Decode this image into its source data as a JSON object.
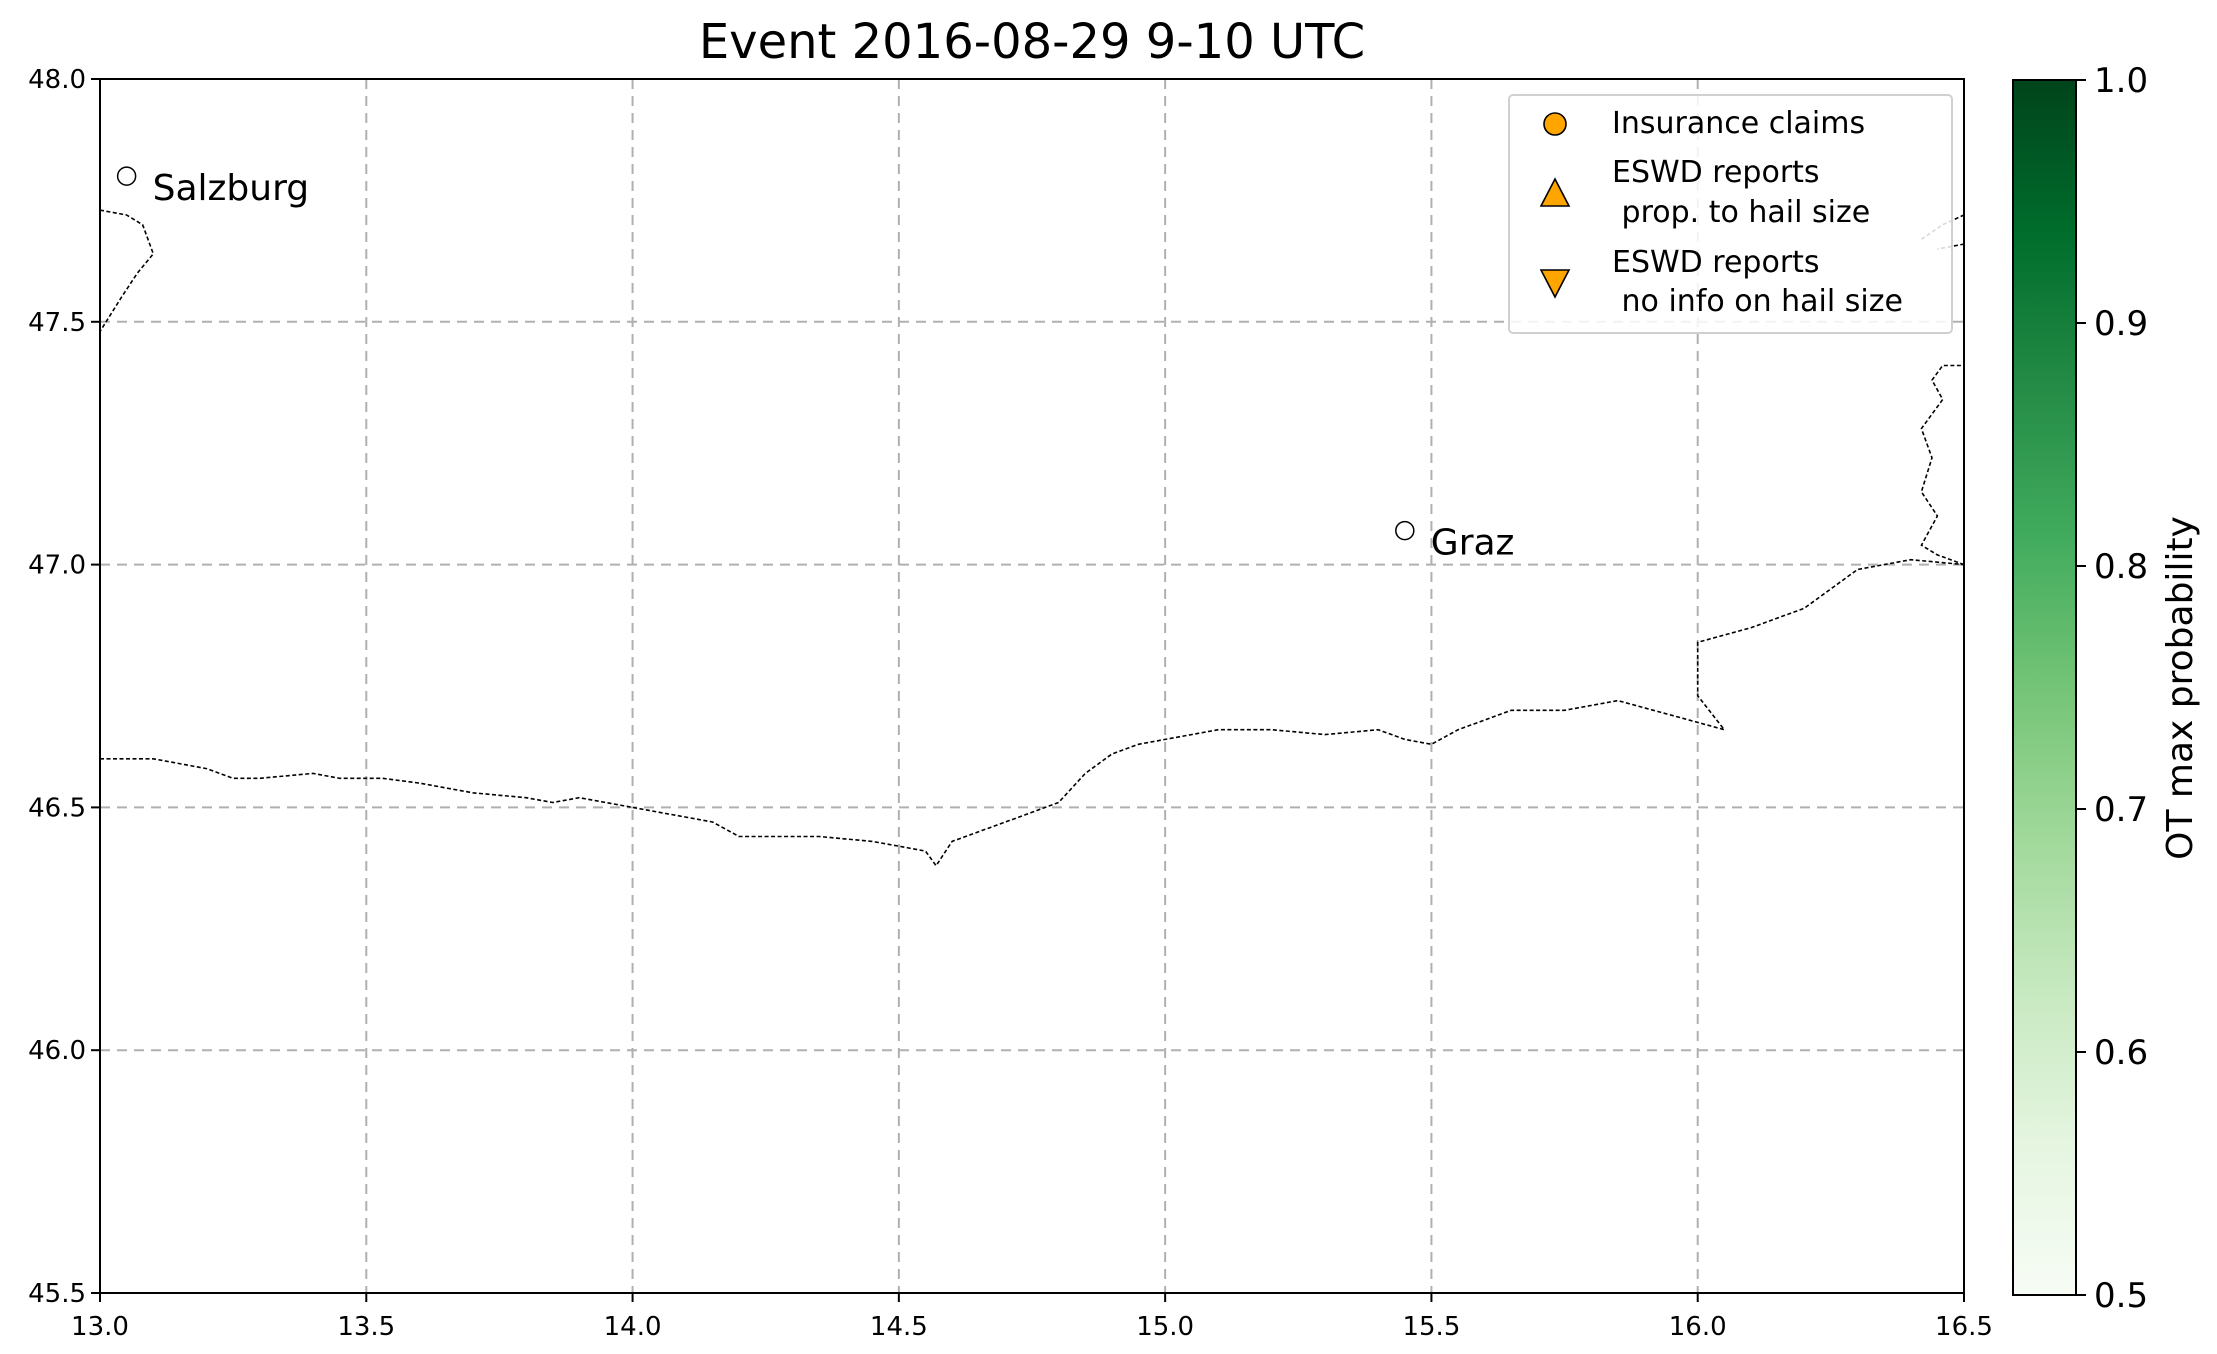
{
  "title": "Event 2016-08-29 9-10 UTC",
  "map": {
    "xlim": [
      13.0,
      16.5
    ],
    "ylim": [
      45.5,
      48.0
    ],
    "xticks": [
      "13.0",
      "13.5",
      "14.0",
      "14.5",
      "15.0",
      "15.5",
      "16.0",
      "16.5"
    ],
    "yticks": [
      "45.5",
      "46.0",
      "46.5",
      "47.0",
      "47.5",
      "48.0"
    ],
    "grid": true,
    "grid_style": "dashed",
    "border_color": "#000000",
    "grid_color": "#b0b0b0"
  },
  "cities": [
    {
      "name": "Salzburg",
      "lon": 13.05,
      "lat": 47.8
    },
    {
      "name": "Graz",
      "lon": 15.45,
      "lat": 47.07
    }
  ],
  "borders": {
    "southern": [
      [
        13.0,
        46.6
      ],
      [
        13.1,
        46.6
      ],
      [
        13.2,
        46.58
      ],
      [
        13.25,
        46.56
      ],
      [
        13.3,
        46.56
      ],
      [
        13.4,
        46.57
      ],
      [
        13.45,
        46.56
      ],
      [
        13.53,
        46.56
      ],
      [
        13.6,
        46.55
      ],
      [
        13.65,
        46.54
      ],
      [
        13.7,
        46.53
      ],
      [
        13.8,
        46.52
      ],
      [
        13.85,
        46.51
      ],
      [
        13.9,
        46.52
      ],
      [
        14.0,
        46.5
      ],
      [
        14.05,
        46.49
      ],
      [
        14.1,
        46.48
      ],
      [
        14.15,
        46.47
      ],
      [
        14.2,
        46.44
      ],
      [
        14.3,
        46.44
      ],
      [
        14.35,
        46.44
      ],
      [
        14.45,
        46.43
      ],
      [
        14.5,
        46.42
      ],
      [
        14.55,
        46.41
      ],
      [
        14.57,
        46.38
      ],
      [
        14.6,
        46.43
      ],
      [
        14.65,
        46.45
      ],
      [
        14.7,
        46.47
      ],
      [
        14.75,
        46.49
      ],
      [
        14.8,
        46.51
      ],
      [
        14.85,
        46.57
      ],
      [
        14.9,
        46.61
      ],
      [
        14.95,
        46.63
      ],
      [
        15.0,
        46.64
      ],
      [
        15.1,
        46.66
      ],
      [
        15.2,
        46.66
      ],
      [
        15.3,
        46.65
      ],
      [
        15.4,
        46.66
      ],
      [
        15.45,
        46.64
      ],
      [
        15.5,
        46.63
      ],
      [
        15.55,
        46.66
      ],
      [
        15.65,
        46.7
      ],
      [
        15.75,
        46.7
      ],
      [
        15.85,
        46.72
      ],
      [
        15.95,
        46.69
      ],
      [
        16.05,
        46.66
      ],
      [
        16.0,
        46.73
      ],
      [
        16.0,
        46.84
      ],
      [
        16.1,
        46.87
      ],
      [
        16.2,
        46.91
      ],
      [
        16.3,
        46.99
      ],
      [
        16.4,
        47.01
      ],
      [
        16.5,
        47.0
      ]
    ],
    "eastern": [
      [
        16.5,
        47.0
      ],
      [
        16.45,
        47.02
      ],
      [
        16.42,
        47.04
      ],
      [
        16.45,
        47.1
      ],
      [
        16.42,
        47.15
      ],
      [
        16.44,
        47.22
      ],
      [
        16.42,
        47.28
      ],
      [
        16.46,
        47.34
      ],
      [
        16.44,
        47.38
      ],
      [
        16.46,
        47.41
      ],
      [
        16.5,
        47.41
      ]
    ],
    "northwest": [
      [
        13.0,
        47.73
      ],
      [
        13.05,
        47.72
      ],
      [
        13.08,
        47.7
      ],
      [
        13.1,
        47.64
      ],
      [
        13.07,
        47.6
      ],
      [
        13.04,
        47.55
      ],
      [
        13.0,
        47.48
      ]
    ],
    "northeast": [
      [
        16.42,
        47.67
      ],
      [
        16.46,
        47.7
      ],
      [
        16.5,
        47.72
      ],
      [
        16.5,
        47.66
      ],
      [
        16.45,
        47.65
      ]
    ]
  },
  "legend": {
    "placement": "upper-right",
    "items": [
      {
        "label_lines": [
          "Insurance claims"
        ],
        "marker": "circle",
        "color": "#ffa500"
      },
      {
        "label_lines": [
          "ESWD reports",
          " prop. to hail size"
        ],
        "marker": "triangle-up",
        "color": "#ffa500"
      },
      {
        "label_lines": [
          "ESWD reports",
          " no info on hail size"
        ],
        "marker": "triangle-down",
        "color": "#ffa500"
      }
    ]
  },
  "colorbar": {
    "label": "OT max probability",
    "range": [
      0.5,
      1.0
    ],
    "ticks": [
      "0.5",
      "0.6",
      "0.7",
      "0.8",
      "0.9",
      "1.0"
    ],
    "colormap": "Greens",
    "color_low": "#f7fcf5",
    "color_high": "#00441b"
  }
}
